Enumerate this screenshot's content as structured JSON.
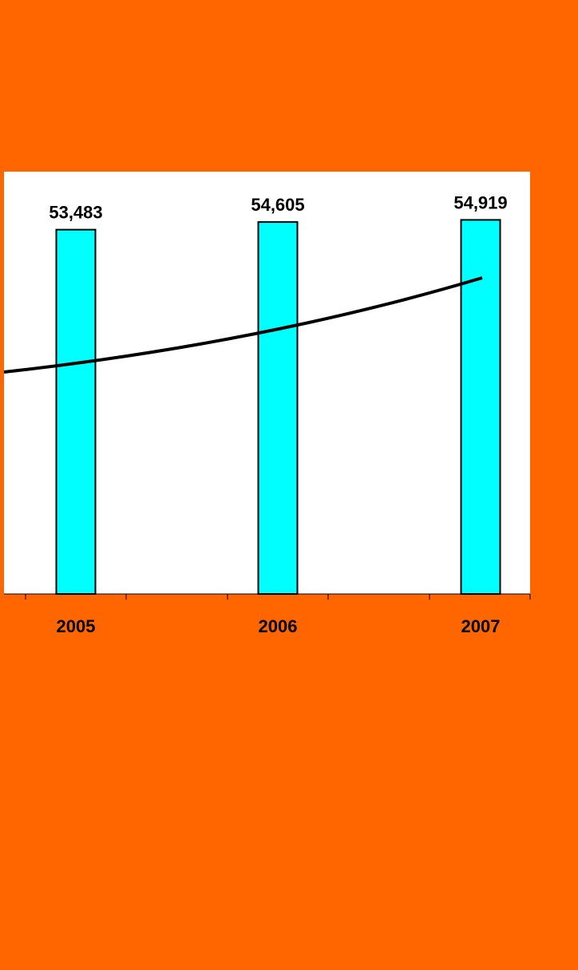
{
  "chart_data": {
    "type": "bar",
    "categories": [
      "2005",
      "2006",
      "2007"
    ],
    "values": [
      53483,
      54605,
      54919
    ],
    "value_labels": [
      "53,483",
      "54,605",
      "54,919"
    ],
    "title": "",
    "xlabel": "",
    "ylabel": "",
    "ylim": [
      0,
      62000
    ],
    "grid": false,
    "trendline": true
  },
  "colors": {
    "background": "#ff6600",
    "plot_area": "#ffffff",
    "bar_fill": "#00ffff",
    "bar_stroke": "#000000",
    "trendline": "#000000"
  }
}
